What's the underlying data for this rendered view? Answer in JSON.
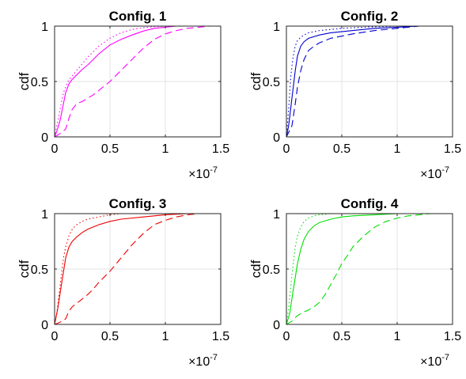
{
  "chart_data": [
    {
      "type": "line",
      "title": "Config. 1",
      "xlabel": "",
      "ylabel": "cdf",
      "x_exponent_label": "×10",
      "x_exponent": "-7",
      "xlim": [
        0,
        1.5
      ],
      "ylim": [
        0,
        1
      ],
      "xticks": [
        "0",
        "0.5",
        "1",
        "1.5"
      ],
      "yticks": [
        "0",
        "0.5",
        "1"
      ],
      "grid": true,
      "color": "#ff00ff",
      "series": [
        {
          "style": "solid",
          "x": [
            0,
            0.02,
            0.05,
            0.08,
            0.1,
            0.13,
            0.16,
            0.2,
            0.25,
            0.3,
            0.35,
            0.4,
            0.5,
            0.6,
            0.7,
            0.8,
            0.9,
            1.0,
            1.1,
            1.2,
            1.3,
            1.5
          ],
          "y": [
            0,
            0.05,
            0.15,
            0.3,
            0.4,
            0.48,
            0.52,
            0.56,
            0.61,
            0.65,
            0.7,
            0.75,
            0.83,
            0.88,
            0.92,
            0.955,
            0.98,
            0.99,
            1.0,
            1.0,
            1.0,
            1.0
          ]
        },
        {
          "style": "dotted",
          "x": [
            0,
            0.02,
            0.05,
            0.08,
            0.12,
            0.16,
            0.2,
            0.25,
            0.3,
            0.4,
            0.5,
            0.6,
            0.7,
            0.8,
            0.9,
            1.0,
            1.1,
            1.3,
            1.5
          ],
          "y": [
            0,
            0.1,
            0.25,
            0.4,
            0.5,
            0.55,
            0.6,
            0.66,
            0.72,
            0.82,
            0.89,
            0.94,
            0.97,
            0.985,
            0.995,
            1.0,
            1.0,
            1.0,
            1.0
          ]
        },
        {
          "style": "dashed",
          "x": [
            0,
            0.05,
            0.1,
            0.13,
            0.16,
            0.2,
            0.25,
            0.3,
            0.35,
            0.4,
            0.5,
            0.6,
            0.7,
            0.8,
            0.9,
            1.0,
            1.1,
            1.2,
            1.3,
            1.4,
            1.5
          ],
          "y": [
            0,
            0.03,
            0.07,
            0.17,
            0.25,
            0.3,
            0.32,
            0.35,
            0.38,
            0.42,
            0.5,
            0.6,
            0.7,
            0.8,
            0.88,
            0.93,
            0.96,
            0.98,
            0.99,
            1.0,
            1.0
          ]
        }
      ]
    },
    {
      "type": "line",
      "title": "Config. 2",
      "xlabel": "",
      "ylabel": "cdf",
      "x_exponent_label": "×10",
      "x_exponent": "-7",
      "xlim": [
        0,
        1.5
      ],
      "ylim": [
        0,
        1
      ],
      "xticks": [
        "0",
        "0.5",
        "1",
        "1.5"
      ],
      "yticks": [
        "0",
        "0.5",
        "1"
      ],
      "grid": true,
      "color": "#0000d0",
      "series": [
        {
          "style": "solid",
          "x": [
            0,
            0.02,
            0.05,
            0.08,
            0.1,
            0.13,
            0.16,
            0.2,
            0.3,
            0.4,
            0.6,
            0.8,
            1.0,
            1.2,
            1.5
          ],
          "y": [
            0,
            0.1,
            0.35,
            0.6,
            0.73,
            0.82,
            0.86,
            0.89,
            0.92,
            0.94,
            0.96,
            0.98,
            0.99,
            1.0,
            1.0
          ]
        },
        {
          "style": "dotted",
          "x": [
            0,
            0.02,
            0.04,
            0.06,
            0.08,
            0.1,
            0.13,
            0.16,
            0.2,
            0.3,
            0.5,
            0.7,
            1.0,
            1.2,
            1.5
          ],
          "y": [
            0,
            0.25,
            0.55,
            0.72,
            0.82,
            0.87,
            0.9,
            0.92,
            0.94,
            0.96,
            0.98,
            0.99,
            1.0,
            1.0,
            1.0
          ]
        },
        {
          "style": "dashed",
          "x": [
            0,
            0.05,
            0.08,
            0.1,
            0.13,
            0.16,
            0.2,
            0.25,
            0.3,
            0.4,
            0.6,
            0.8,
            1.0,
            1.2,
            1.5
          ],
          "y": [
            0,
            0.1,
            0.3,
            0.45,
            0.6,
            0.7,
            0.78,
            0.82,
            0.85,
            0.89,
            0.93,
            0.96,
            0.98,
            1.0,
            1.0
          ]
        }
      ]
    },
    {
      "type": "line",
      "title": "Config. 3",
      "xlabel": "",
      "ylabel": "cdf",
      "x_exponent_label": "×10",
      "x_exponent": "-7",
      "xlim": [
        0,
        1.5
      ],
      "ylim": [
        0,
        1
      ],
      "xticks": [
        "0",
        "0.5",
        "1",
        "1.5"
      ],
      "yticks": [
        "0",
        "0.5",
        "1"
      ],
      "grid": true,
      "color": "#ee0000",
      "series": [
        {
          "style": "solid",
          "x": [
            0,
            0.03,
            0.06,
            0.1,
            0.13,
            0.16,
            0.2,
            0.25,
            0.3,
            0.4,
            0.5,
            0.6,
            0.8,
            1.0,
            1.2,
            1.5
          ],
          "y": [
            0,
            0.15,
            0.35,
            0.6,
            0.7,
            0.75,
            0.79,
            0.83,
            0.86,
            0.9,
            0.93,
            0.95,
            0.97,
            0.99,
            1.0,
            1.0
          ]
        },
        {
          "style": "dotted",
          "x": [
            0,
            0.02,
            0.05,
            0.08,
            0.1,
            0.13,
            0.16,
            0.2,
            0.25,
            0.3,
            0.4,
            0.5,
            0.6,
            0.8,
            1.0,
            1.5
          ],
          "y": [
            0,
            0.1,
            0.35,
            0.6,
            0.7,
            0.8,
            0.86,
            0.9,
            0.93,
            0.95,
            0.97,
            0.99,
            1.0,
            1.0,
            1.0,
            1.0
          ]
        },
        {
          "style": "dashed",
          "x": [
            0,
            0.05,
            0.1,
            0.13,
            0.16,
            0.2,
            0.25,
            0.3,
            0.35,
            0.4,
            0.45,
            0.5,
            0.6,
            0.7,
            0.8,
            0.9,
            1.0,
            1.1,
            1.2,
            1.3,
            1.5
          ],
          "y": [
            0,
            0.02,
            0.05,
            0.12,
            0.16,
            0.19,
            0.23,
            0.27,
            0.32,
            0.38,
            0.43,
            0.48,
            0.6,
            0.72,
            0.82,
            0.9,
            0.94,
            0.97,
            0.99,
            1.0,
            1.0
          ]
        }
      ]
    },
    {
      "type": "line",
      "title": "Config. 4",
      "xlabel": "",
      "ylabel": "cdf",
      "x_exponent_label": "×10",
      "x_exponent": "-7",
      "xlim": [
        0,
        1.5
      ],
      "ylim": [
        0,
        1
      ],
      "xticks": [
        "0",
        "0.5",
        "1",
        "1.5"
      ],
      "yticks": [
        "0",
        "0.5",
        "1"
      ],
      "grid": true,
      "color": "#00e000",
      "series": [
        {
          "style": "solid",
          "x": [
            0,
            0.03,
            0.06,
            0.1,
            0.13,
            0.16,
            0.2,
            0.25,
            0.3,
            0.4,
            0.5,
            0.6,
            0.8,
            1.0,
            1.2,
            1.5
          ],
          "y": [
            0,
            0.1,
            0.3,
            0.55,
            0.68,
            0.77,
            0.84,
            0.89,
            0.92,
            0.95,
            0.97,
            0.98,
            0.99,
            1.0,
            1.0,
            1.0
          ]
        },
        {
          "style": "dotted",
          "x": [
            0,
            0.02,
            0.05,
            0.08,
            0.1,
            0.13,
            0.16,
            0.2,
            0.25,
            0.3,
            0.4,
            0.5,
            1.0,
            1.5
          ],
          "y": [
            0,
            0.15,
            0.45,
            0.7,
            0.8,
            0.88,
            0.93,
            0.96,
            0.98,
            0.99,
            1.0,
            1.0,
            1.0,
            1.0
          ]
        },
        {
          "style": "dashed",
          "x": [
            0,
            0.05,
            0.1,
            0.15,
            0.2,
            0.25,
            0.3,
            0.35,
            0.4,
            0.45,
            0.5,
            0.55,
            0.6,
            0.7,
            0.8,
            0.9,
            1.0,
            1.1,
            1.2,
            1.3,
            1.5
          ],
          "y": [
            0,
            0.03,
            0.08,
            0.11,
            0.13,
            0.16,
            0.2,
            0.27,
            0.36,
            0.45,
            0.55,
            0.62,
            0.7,
            0.8,
            0.88,
            0.93,
            0.96,
            0.98,
            0.99,
            1.0,
            1.0
          ]
        }
      ]
    }
  ]
}
